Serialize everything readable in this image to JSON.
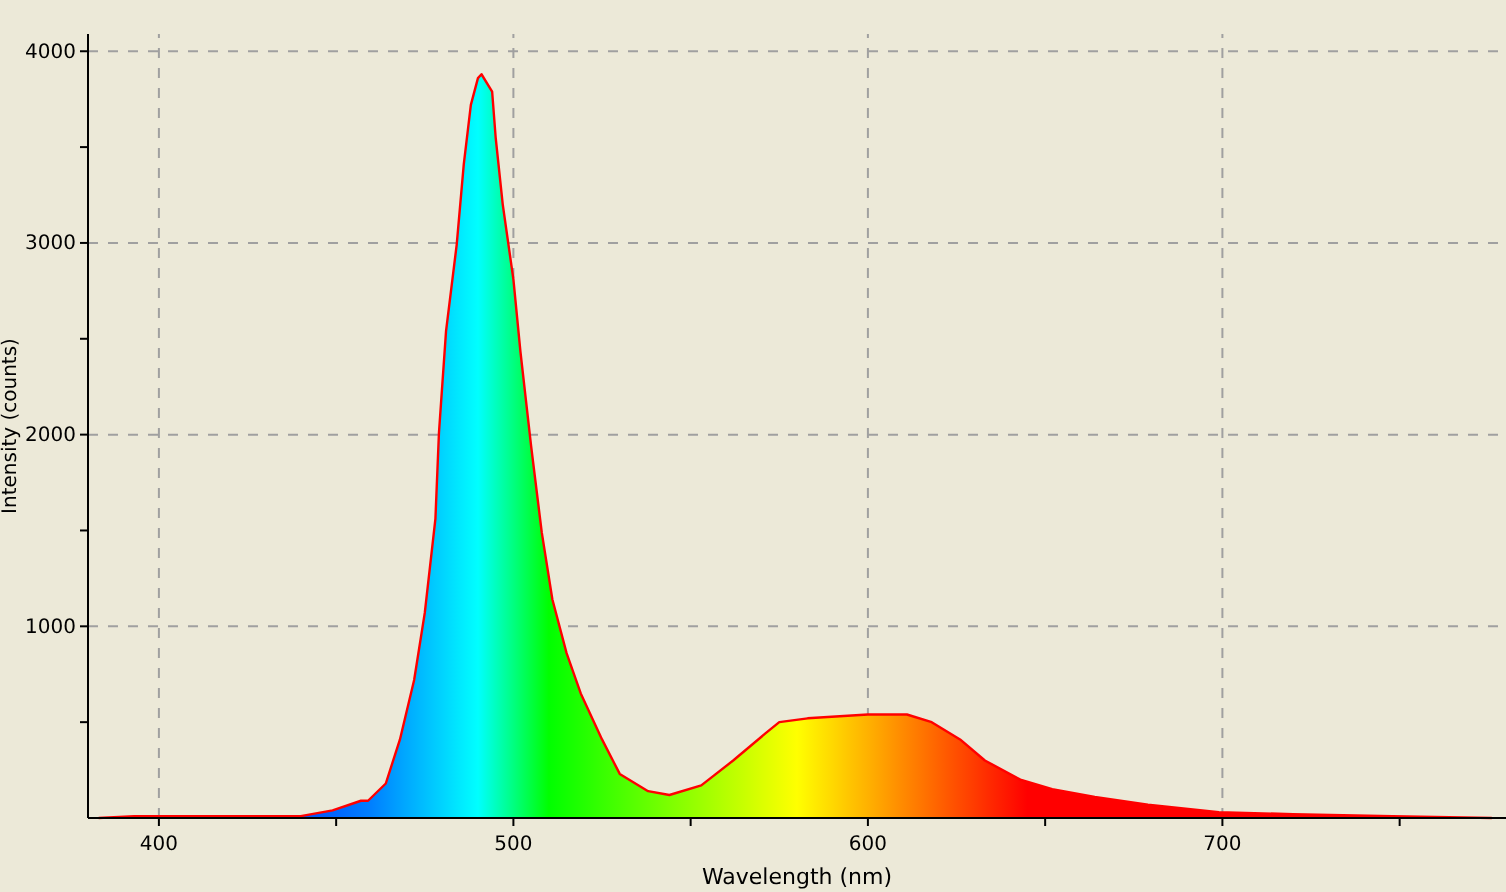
{
  "chart_data": {
    "type": "area",
    "xlabel": "Wavelength (nm)",
    "ylabel": "Intensity (counts)",
    "xlim": [
      380,
      780
    ],
    "ylim": [
      0,
      4090
    ],
    "xticks": [
      400,
      {
        "value": 450,
        "label": null
      },
      500,
      {
        "value": 550,
        "label": null
      },
      600,
      {
        "value": 650,
        "label": null
      },
      700,
      {
        "value": 750,
        "label": null
      }
    ],
    "yticks": [
      {
        "value": 500,
        "label": null
      },
      1000,
      {
        "value": 1500,
        "label": null
      },
      2000,
      {
        "value": 2500,
        "label": null
      },
      3000,
      {
        "value": 3500,
        "label": null
      },
      4000
    ],
    "grid": true,
    "series": [
      {
        "color": "#ff0000",
        "x": [
          383,
          393,
          420,
          440,
          449,
          457,
          459,
          464,
          468,
          472,
          475,
          478,
          479,
          481,
          484,
          486,
          488,
          490,
          491,
          494,
          495,
          497,
          500,
          502,
          505,
          508,
          511,
          515,
          519,
          525,
          530,
          538,
          544,
          553,
          562,
          571,
          575,
          583,
          600,
          611,
          618,
          626,
          633,
          643,
          652,
          664,
          679,
          699,
          720,
          748,
          776
        ],
        "values": [
          0,
          10,
          10,
          10,
          40,
          90,
          90,
          180,
          410,
          720,
          1070,
          1560,
          2010,
          2540,
          2990,
          3410,
          3720,
          3860,
          3880,
          3790,
          3550,
          3200,
          2810,
          2430,
          1940,
          1490,
          1140,
          860,
          650,
          410,
          230,
          140,
          120,
          170,
          300,
          440,
          500,
          520,
          540,
          540,
          500,
          410,
          300,
          200,
          150,
          110,
          70,
          30,
          20,
          10,
          0
        ]
      }
    ]
  }
}
